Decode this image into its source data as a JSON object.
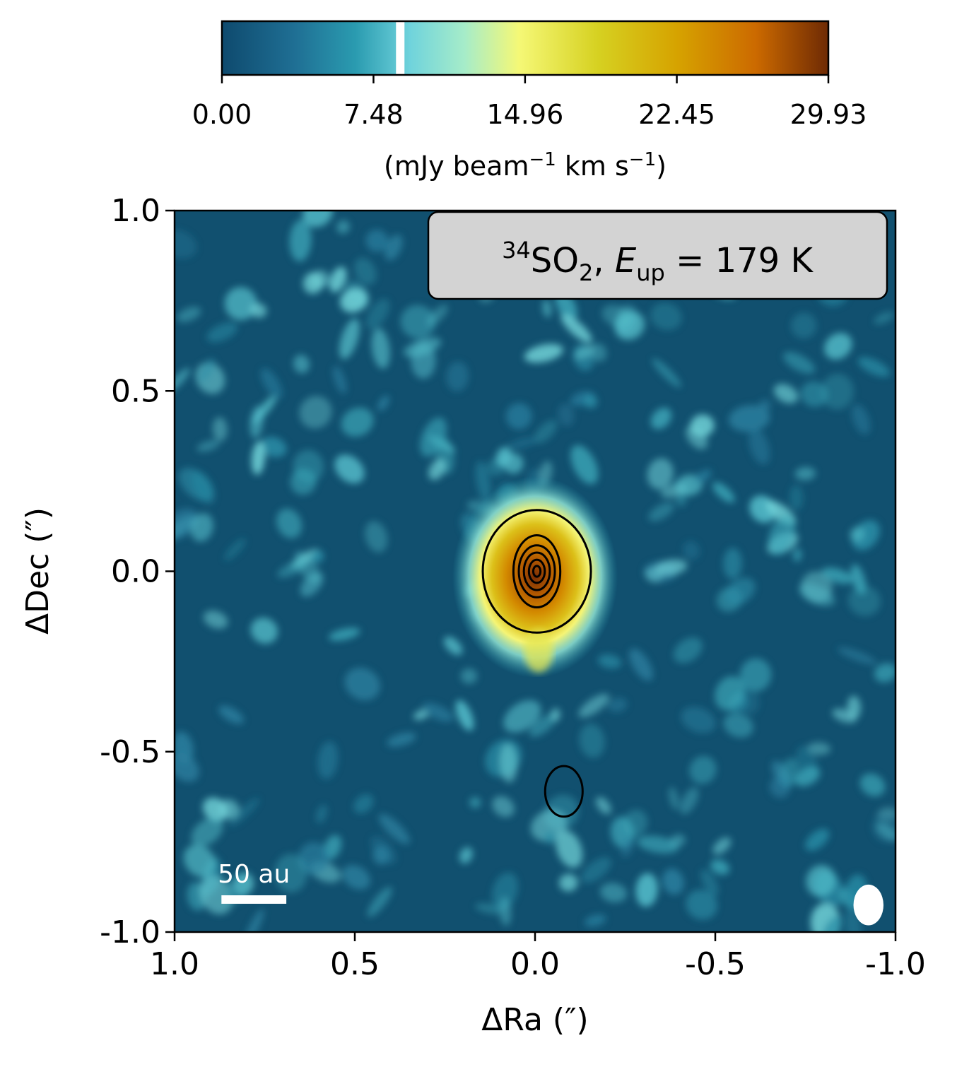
{
  "chart_data": {
    "type": "heatmap",
    "title": "",
    "xlabel": "ΔRa (″)",
    "ylabel": "ΔDec (″)",
    "xlim": [
      1.0,
      -1.0
    ],
    "ylim": [
      -1.0,
      1.0
    ],
    "x_ticks": [
      1.0,
      0.5,
      0.0,
      -0.5,
      -1.0
    ],
    "y_ticks": [
      1.0,
      0.5,
      0.0,
      -0.5,
      -1.0
    ],
    "x_tick_labels": [
      "1.0",
      "0.5",
      "0.0",
      "-0.5",
      "-1.0"
    ],
    "y_tick_labels": [
      "1.0",
      "0.5",
      "0.0",
      "-0.5",
      "-1.0"
    ],
    "colorbar": {
      "vmin": 0.0,
      "vmax": 29.93,
      "ticks": [
        0.0,
        7.48,
        14.96,
        22.45,
        29.93
      ],
      "tick_labels": [
        "0.00",
        "7.48",
        "14.96",
        "22.45",
        "29.93"
      ],
      "label_prefix": "(mJy beam",
      "label_sup1": "−1",
      "label_mid": " km s",
      "label_sup2": "−1",
      "label_suffix": ")",
      "gap_value": 8.8,
      "colors": [
        "#0e4a6e",
        "#1f6f94",
        "#2a9bb0",
        "#6fd3dc",
        "#a6ecc9",
        "#f5f876",
        "#d6d121",
        "#d6a300",
        "#cc6a00",
        "#6e2a04"
      ]
    },
    "annotation": {
      "sup": "34",
      "species": "SO",
      "sub": "2",
      "energy_symbol": "E",
      "energy_sub": "up",
      "equals_value": " = 179 K",
      "separator": ", "
    },
    "scale_bar": {
      "label": "50 au",
      "x_start": 0.87,
      "x_end": 0.69,
      "y": -0.91
    },
    "beam": {
      "x": -0.925,
      "y": -0.925,
      "major": 0.058,
      "minor": 0.044
    },
    "emission_peak": {
      "x": 0.0,
      "y": 0.0,
      "value": 29.93
    },
    "contours": [
      {
        "cx": -0.005,
        "cy": 0.0,
        "rx": 0.15,
        "ry": 0.17
      },
      {
        "cx": -0.005,
        "cy": 0.0,
        "rx": 0.065,
        "ry": 0.1
      },
      {
        "cx": -0.005,
        "cy": 0.0,
        "rx": 0.05,
        "ry": 0.072
      },
      {
        "cx": -0.005,
        "cy": 0.0,
        "rx": 0.036,
        "ry": 0.052
      },
      {
        "cx": -0.005,
        "cy": 0.0,
        "rx": 0.022,
        "ry": 0.032
      },
      {
        "cx": -0.005,
        "cy": 0.0,
        "rx": 0.01,
        "ry": 0.015
      },
      {
        "cx": -0.08,
        "cy": -0.61,
        "rx": 0.052,
        "ry": 0.07
      }
    ]
  }
}
